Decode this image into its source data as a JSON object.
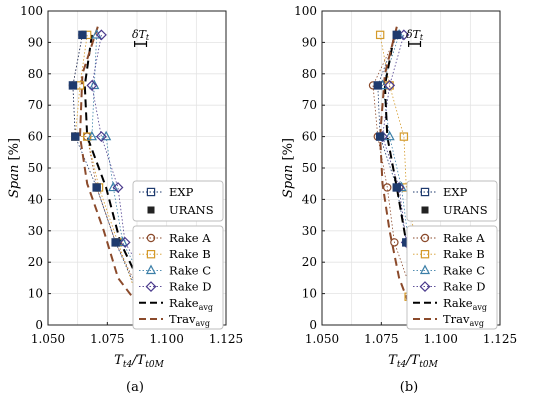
{
  "chart_data": [
    {
      "type": "line",
      "panel_label": "(a)",
      "xlabel": "Tt4/Tt0M",
      "xlabel_main": "T",
      "xlabel_sub1": "t4",
      "xlabel_slash": "/T",
      "xlabel_sub2": "t0M",
      "ylabel": "Span [%]",
      "xlim": [
        1.05,
        1.125
      ],
      "ylim": [
        0,
        100
      ],
      "xticks": [
        1.05,
        1.075,
        1.1,
        1.125
      ],
      "xtick_labels": [
        "1.050",
        "1.075",
        "1.100",
        "1.125"
      ],
      "yticks": [
        0,
        10,
        20,
        30,
        40,
        50,
        60,
        70,
        80,
        90,
        100
      ],
      "ytick_labels": [
        "0",
        "10",
        "20",
        "30",
        "40",
        "50",
        "60",
        "70",
        "80",
        "90",
        "100"
      ],
      "grid": true,
      "legend_position": "lower-right",
      "annotation": "δTt",
      "annotation_interval": [
        1.0865,
        1.0915
      ],
      "annotation_span": 89.5,
      "series": [
        {
          "name": "Rake A",
          "kind": "rake",
          "color": "#8b4a2b",
          "marker": "circle",
          "x": [
            1.0645,
            1.0605,
            1.0615,
            1.0665,
            1.0705,
            1.0785,
            1.0895
          ],
          "y": [
            92.4,
            76.3,
            60.0,
            60.0,
            43.8,
            26.3,
            9.0
          ]
        },
        {
          "name": "Rake B",
          "kind": "rake",
          "color": "#d49a2a",
          "marker": "square",
          "x": [
            1.0665,
            1.0635,
            1.0615,
            1.0665,
            1.0715,
            1.0795,
            1.0875
          ],
          "y": [
            92.4,
            76.3,
            60.0,
            60.0,
            43.8,
            26.3,
            9.0
          ]
        },
        {
          "name": "Rake C",
          "kind": "rake",
          "color": "#3c7fa8",
          "marker": "triangle",
          "x": [
            1.0705,
            1.0695,
            1.0685,
            1.0745,
            1.0775,
            1.0815,
            1.0935
          ],
          "y": [
            92.4,
            76.3,
            60.0,
            60.0,
            43.8,
            26.3,
            9.0
          ]
        },
        {
          "name": "Rake D",
          "kind": "rake",
          "color": "#4a3a8c",
          "marker": "diamond",
          "x": [
            1.0725,
            1.0685,
            1.0725,
            1.0795,
            1.0825,
            1.0955
          ],
          "y": [
            92.4,
            76.3,
            60.0,
            43.8,
            26.3,
            9.0
          ]
        },
        {
          "name": "Rakeavg",
          "kind": "avg",
          "color": "#000000",
          "dash": "8,5",
          "x": [
            1.0685,
            1.0655,
            1.0665,
            1.0745,
            1.0805,
            1.0915
          ],
          "y": [
            92.4,
            76.3,
            60.0,
            43.8,
            26.3,
            9.0
          ]
        },
        {
          "name": "Travavg",
          "kind": "avg",
          "color": "#8b4a2b",
          "dash": "8,5",
          "x": [
            1.071,
            1.0645,
            1.0635,
            1.0665,
            1.0735,
            1.0795,
            1.0895
          ],
          "y": [
            95,
            80,
            60,
            45,
            30,
            15,
            5
          ]
        },
        {
          "name": "EXP",
          "kind": "urans",
          "color": "#1f3b6e",
          "marker": "open-square",
          "x": [
            1.0645,
            1.0605,
            1.0615,
            1.0705,
            1.0785,
            1.0885
          ],
          "y": [
            92.4,
            76.3,
            60.0,
            43.8,
            26.3,
            9.0
          ]
        },
        {
          "name": "URANS",
          "kind": "urans",
          "color": "#1f3b6e",
          "marker": "filled-square",
          "x": [
            1.0645,
            1.0605,
            1.0615,
            1.0705,
            1.0785,
            1.0885
          ],
          "y": [
            92.4,
            76.3,
            60.0,
            43.8,
            26.3,
            9.0
          ]
        }
      ],
      "legend": [
        {
          "name": "EXP",
          "marker": "open-square",
          "color": "#1f3b6e",
          "line": "dotted"
        },
        {
          "name": "URANS",
          "marker": "filled-square",
          "color": "#222222",
          "line": "none"
        },
        {
          "name": "Rake A",
          "marker": "circle",
          "color": "#8b4a2b",
          "line": "dotted"
        },
        {
          "name": "Rake B",
          "marker": "square",
          "color": "#d49a2a",
          "line": "dotted"
        },
        {
          "name": "Rake C",
          "marker": "triangle",
          "color": "#3c7fa8",
          "line": "dotted"
        },
        {
          "name": "Rake D",
          "marker": "diamond",
          "color": "#4a3a8c",
          "line": "dotted"
        },
        {
          "name": "Rake",
          "sub": "avg",
          "marker": "none",
          "color": "#000000",
          "line": "dashed"
        },
        {
          "name": "Trav",
          "sub": "avg",
          "marker": "none",
          "color": "#8b4a2b",
          "line": "dashed"
        }
      ]
    },
    {
      "type": "line",
      "panel_label": "(b)",
      "xlabel": "Tt4/Tt0M",
      "xlabel_main": "T",
      "xlabel_sub1": "t4",
      "xlabel_slash": "/T",
      "xlabel_sub2": "t0M",
      "ylabel": "Span [%]",
      "xlim": [
        1.05,
        1.125
      ],
      "ylim": [
        0,
        100
      ],
      "xticks": [
        1.05,
        1.075,
        1.1,
        1.125
      ],
      "xtick_labels": [
        "1.050",
        "1.075",
        "1.100",
        "1.125"
      ],
      "yticks": [
        0,
        10,
        20,
        30,
        40,
        50,
        60,
        70,
        80,
        90,
        100
      ],
      "ytick_labels": [
        "0",
        "10",
        "20",
        "30",
        "40",
        "50",
        "60",
        "70",
        "80",
        "90",
        "100"
      ],
      "grid": true,
      "legend_position": "lower-right",
      "annotation": "δTt",
      "annotation_interval": [
        1.0865,
        1.0915
      ],
      "annotation_span": 89.5,
      "series": [
        {
          "name": "Rake A",
          "kind": "rake",
          "color": "#8b4a2b",
          "marker": "circle",
          "x": [
            1.0815,
            1.0715,
            1.0735,
            1.0775,
            1.0805,
            1.0885
          ],
          "y": [
            92.4,
            76.3,
            60.0,
            43.8,
            26.3,
            9.0
          ]
        },
        {
          "name": "Rake B",
          "kind": "rake",
          "color": "#d49a2a",
          "marker": "square",
          "x": [
            1.0745,
            1.0785,
            1.0845,
            1.0855,
            1.0895,
            1.0865
          ],
          "y": [
            92.4,
            76.3,
            60.0,
            43.8,
            26.3,
            9.0
          ]
        },
        {
          "name": "Rake C",
          "kind": "rake",
          "color": "#3c7fa8",
          "marker": "triangle",
          "x": [
            1.0825,
            1.0755,
            1.0785,
            1.0835,
            1.0865,
            1.0965
          ],
          "y": [
            92.4,
            76.3,
            60.0,
            43.8,
            26.3,
            9.0
          ]
        },
        {
          "name": "Rake D",
          "kind": "rake",
          "color": "#4a3a8c",
          "marker": "diamond",
          "x": [
            1.0845,
            1.0785,
            1.0755,
            1.0825,
            1.0855,
            1.0955
          ],
          "y": [
            92.4,
            76.3,
            60.0,
            43.8,
            26.3,
            9.0
          ]
        },
        {
          "name": "Rakeavg",
          "kind": "avg",
          "color": "#000000",
          "dash": "8,5",
          "x": [
            1.0805,
            1.0765,
            1.0775,
            1.0815,
            1.0855,
            1.0925
          ],
          "y": [
            92.4,
            76.3,
            60.0,
            43.8,
            26.3,
            9.0
          ]
        },
        {
          "name": "Travavg",
          "kind": "avg",
          "color": "#8b4a2b",
          "dash": "8,5",
          "x": [
            1.0815,
            1.0765,
            1.0745,
            1.0755,
            1.0785,
            1.0825,
            1.0875
          ],
          "y": [
            95,
            80,
            60,
            45,
            30,
            15,
            5
          ]
        },
        {
          "name": "EXP",
          "kind": "urans",
          "color": "#1f3b6e",
          "marker": "open-square",
          "x": [
            1.0815,
            1.0735,
            1.0745,
            1.0815,
            1.0855,
            1.0875
          ],
          "y": [
            92.4,
            76.3,
            60.0,
            43.8,
            26.3,
            9.0
          ]
        },
        {
          "name": "URANS",
          "kind": "urans",
          "color": "#1f3b6e",
          "marker": "filled-square",
          "x": [
            1.0815,
            1.0735,
            1.0745,
            1.0815,
            1.0855,
            1.0875
          ],
          "y": [
            92.4,
            76.3,
            60.0,
            43.8,
            26.3,
            9.0
          ]
        }
      ],
      "legend": [
        {
          "name": "EXP",
          "marker": "open-square",
          "color": "#1f3b6e",
          "line": "dotted"
        },
        {
          "name": "URANS",
          "marker": "filled-square",
          "color": "#222222",
          "line": "none"
        },
        {
          "name": "Rake A",
          "marker": "circle",
          "color": "#8b4a2b",
          "line": "dotted"
        },
        {
          "name": "Rake B",
          "marker": "square",
          "color": "#d49a2a",
          "line": "dotted"
        },
        {
          "name": "Rake C",
          "marker": "triangle",
          "color": "#3c7fa8",
          "line": "dotted"
        },
        {
          "name": "Rake D",
          "marker": "diamond",
          "color": "#4a3a8c",
          "line": "dotted"
        },
        {
          "name": "Rake",
          "sub": "avg",
          "marker": "none",
          "color": "#000000",
          "line": "dashed"
        },
        {
          "name": "Trav",
          "sub": "avg",
          "marker": "none",
          "color": "#8b4a2b",
          "line": "dashed"
        }
      ]
    }
  ]
}
